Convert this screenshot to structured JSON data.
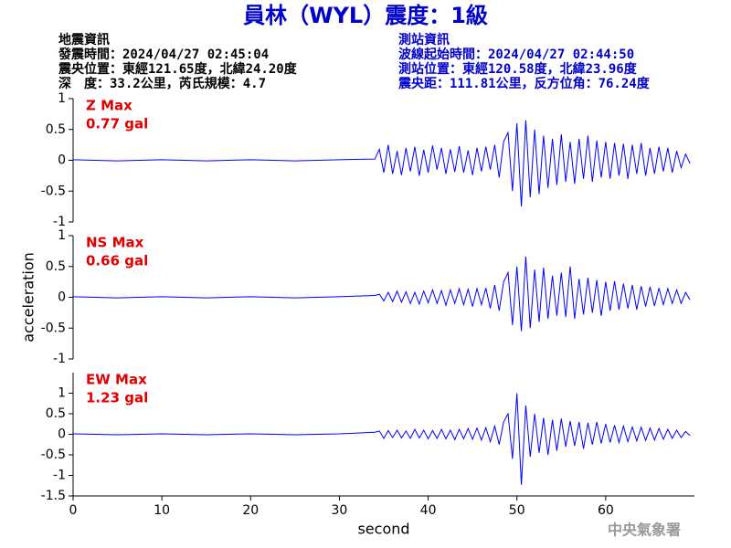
{
  "title": "員林（WYL）震度：1級",
  "event_info": [
    "地震資訊",
    "發震時間：2024/04/27 02:45:04",
    "震央位置：東經121.65度，北緯24.20度",
    "深　度：33.2公里，芮氏規模：4.7"
  ],
  "station_info": [
    "測站資訊",
    "波線起始時間：2024/04/27 02:44:50",
    "測站位置：東經120.58度，北緯23.96度",
    "震央距：111.81公里，反方位角：76.24度"
  ],
  "footer": "中央氣象署",
  "chart_data": [
    {
      "type": "line",
      "annotations": [
        "Z Max",
        "0.77 gal"
      ],
      "xlim": [
        0,
        70
      ],
      "ylim": [
        -1,
        1
      ],
      "yticks": [
        -1,
        -0.5,
        0,
        0.5,
        1
      ],
      "x": [
        0,
        5,
        10,
        15,
        20,
        25,
        30,
        34,
        34.5,
        35,
        35.5,
        36,
        36.5,
        37,
        37.5,
        38,
        38.5,
        39,
        39.5,
        40,
        40.5,
        41,
        41.5,
        42,
        42.5,
        43,
        43.5,
        44,
        44.5,
        45,
        45.5,
        46,
        46.5,
        47,
        47.5,
        48,
        48.5,
        49,
        49.5,
        50,
        50.5,
        51,
        51.5,
        52,
        52.5,
        53,
        53.5,
        54,
        54.5,
        55,
        55.5,
        56,
        56.5,
        57,
        57.5,
        58,
        58.5,
        59,
        59.5,
        60,
        60.5,
        61,
        61.5,
        62,
        62.5,
        63,
        63.5,
        64,
        64.5,
        65,
        65.5,
        66,
        66.5,
        67,
        67.5,
        68,
        68.5,
        69,
        69.5
      ],
      "series": [
        {
          "color": "#0000ff",
          "values": [
            0.01,
            -0.01,
            0.01,
            -0.01,
            0.01,
            -0.01,
            0.01,
            0.02,
            0.18,
            -0.2,
            0.25,
            -0.22,
            0.15,
            -0.24,
            0.2,
            -0.18,
            0.22,
            -0.25,
            0.17,
            -0.2,
            0.24,
            -0.15,
            0.2,
            -0.22,
            0.18,
            -0.19,
            0.23,
            -0.2,
            0.16,
            -0.24,
            0.2,
            -0.18,
            0.22,
            -0.15,
            0.25,
            -0.28,
            0.3,
            0.45,
            -0.5,
            0.6,
            -0.75,
            0.65,
            -0.6,
            0.5,
            -0.55,
            0.4,
            -0.45,
            0.35,
            -0.4,
            0.42,
            -0.35,
            0.3,
            -0.38,
            0.35,
            -0.3,
            0.4,
            -0.35,
            0.32,
            -0.28,
            0.3,
            -0.3,
            0.28,
            -0.25,
            0.27,
            -0.3,
            0.25,
            -0.22,
            0.28,
            -0.25,
            0.2,
            -0.22,
            0.22,
            -0.18,
            0.2,
            -0.2,
            0.15,
            -0.12,
            0.1,
            -0.05
          ]
        }
      ]
    },
    {
      "type": "line",
      "annotations": [
        "NS Max",
        "0.66 gal"
      ],
      "ylabel": "acceleration",
      "xlim": [
        0,
        70
      ],
      "ylim": [
        -1,
        1
      ],
      "yticks": [
        -1,
        -0.5,
        0,
        0.5,
        1
      ],
      "x": [
        0,
        5,
        10,
        15,
        20,
        25,
        30,
        34,
        34.5,
        35,
        35.5,
        36,
        36.5,
        37,
        37.5,
        38,
        38.5,
        39,
        39.5,
        40,
        40.5,
        41,
        41.5,
        42,
        42.5,
        43,
        43.5,
        44,
        44.5,
        45,
        45.5,
        46,
        46.5,
        47,
        47.5,
        48,
        48.5,
        49,
        49.5,
        50,
        50.5,
        51,
        51.5,
        52,
        52.5,
        53,
        53.5,
        54,
        54.5,
        55,
        55.5,
        56,
        56.5,
        57,
        57.5,
        58,
        58.5,
        59,
        59.5,
        60,
        60.5,
        61,
        61.5,
        62,
        62.5,
        63,
        63.5,
        64,
        64.5,
        65,
        65.5,
        66,
        66.5,
        67,
        67.5,
        68,
        68.5,
        69,
        69.5
      ],
      "series": [
        {
          "color": "#0000ff",
          "values": [
            0.01,
            -0.01,
            0.01,
            -0.01,
            0.01,
            -0.01,
            0.01,
            0.03,
            0.05,
            -0.06,
            0.08,
            -0.07,
            0.1,
            -0.08,
            0.09,
            -0.1,
            0.08,
            -0.11,
            0.1,
            -0.09,
            0.12,
            -0.1,
            0.11,
            -0.13,
            0.12,
            -0.1,
            0.14,
            -0.12,
            0.13,
            -0.15,
            0.14,
            -0.12,
            0.15,
            -0.18,
            0.2,
            -0.22,
            0.25,
            0.4,
            -0.45,
            0.5,
            -0.55,
            0.66,
            -0.5,
            0.45,
            -0.4,
            0.48,
            -0.35,
            0.35,
            -0.3,
            0.4,
            -0.32,
            0.5,
            -0.35,
            0.3,
            -0.28,
            0.32,
            -0.25,
            0.28,
            -0.3,
            0.25,
            -0.22,
            0.26,
            -0.2,
            0.22,
            -0.18,
            0.2,
            -0.2,
            0.18,
            -0.15,
            0.17,
            -0.14,
            0.15,
            -0.12,
            0.14,
            -0.1,
            0.12,
            -0.1,
            0.08,
            -0.04
          ]
        }
      ]
    },
    {
      "type": "line",
      "annotations": [
        "EW Max",
        "1.23 gal"
      ],
      "xlabel": "second",
      "xlim": [
        0,
        70
      ],
      "xticks": [
        0,
        10,
        20,
        30,
        40,
        50,
        60
      ],
      "ylim": [
        -1.5,
        1.5
      ],
      "yticks": [
        -1.5,
        -1,
        -0.5,
        0,
        0.5,
        1
      ],
      "x": [
        0,
        5,
        10,
        15,
        20,
        25,
        30,
        34,
        34.5,
        35,
        35.5,
        36,
        36.5,
        37,
        37.5,
        38,
        38.5,
        39,
        39.5,
        40,
        40.5,
        41,
        41.5,
        42,
        42.5,
        43,
        43.5,
        44,
        44.5,
        45,
        45.5,
        46,
        46.5,
        47,
        47.5,
        48,
        48.5,
        49,
        49.5,
        50,
        50.5,
        51,
        51.5,
        52,
        52.5,
        53,
        53.5,
        54,
        54.5,
        55,
        55.5,
        56,
        56.5,
        57,
        57.5,
        58,
        58.5,
        59,
        59.5,
        60,
        60.5,
        61,
        61.5,
        62,
        62.5,
        63,
        63.5,
        64,
        64.5,
        65,
        65.5,
        66,
        66.5,
        67,
        67.5,
        68,
        68.5,
        69,
        69.5
      ],
      "series": [
        {
          "color": "#0000ff",
          "values": [
            0.01,
            -0.01,
            0.01,
            -0.01,
            0.01,
            -0.01,
            0.01,
            0.05,
            0.08,
            -0.1,
            0.09,
            -0.08,
            0.1,
            -0.09,
            0.08,
            -0.1,
            0.12,
            -0.09,
            0.1,
            -0.11,
            0.09,
            -0.1,
            0.12,
            -0.11,
            0.1,
            -0.13,
            0.12,
            -0.11,
            0.14,
            -0.12,
            0.15,
            -0.14,
            0.16,
            -0.18,
            0.2,
            -0.25,
            0.3,
            0.5,
            -0.6,
            1.0,
            -1.23,
            0.7,
            -0.55,
            0.5,
            -0.45,
            0.4,
            -0.5,
            0.35,
            -0.4,
            0.38,
            -0.3,
            0.32,
            -0.28,
            0.3,
            -0.35,
            0.28,
            -0.25,
            0.3,
            -0.22,
            0.25,
            -0.2,
            0.22,
            -0.2,
            0.2,
            -0.18,
            0.18,
            -0.16,
            0.17,
            -0.15,
            0.15,
            -0.14,
            0.14,
            -0.12,
            0.12,
            -0.1,
            0.1,
            -0.08,
            0.07,
            -0.03
          ]
        }
      ]
    }
  ]
}
